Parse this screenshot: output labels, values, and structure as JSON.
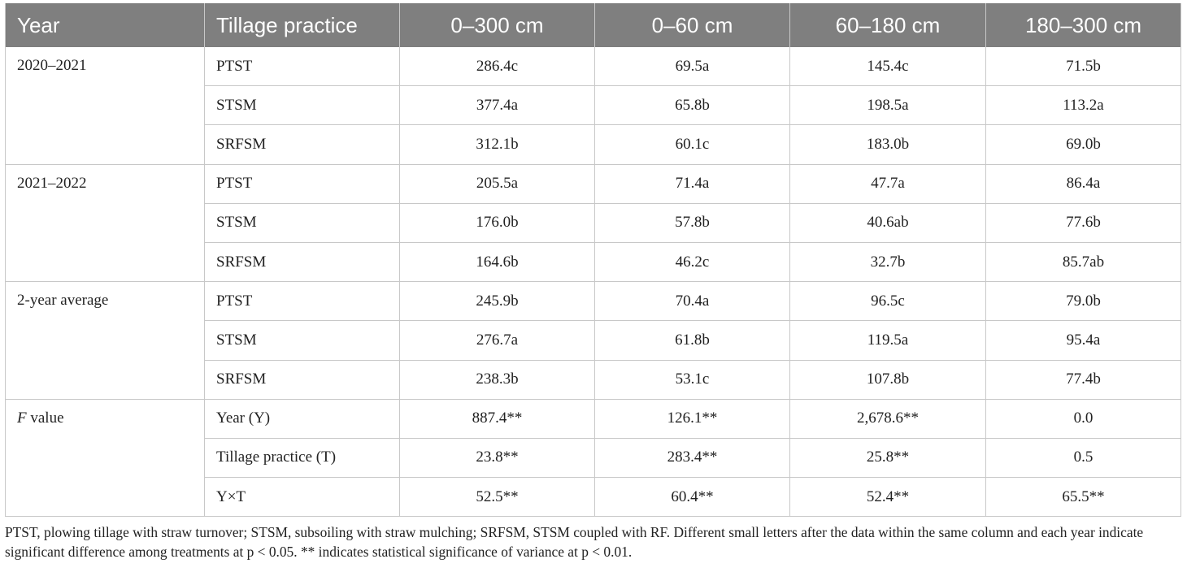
{
  "headers": [
    "Year",
    "Tillage practice",
    "0–300 cm",
    "0–60 cm",
    "60–180 cm",
    "180–300 cm"
  ],
  "groups": [
    {
      "year": "2020–2021",
      "rows": [
        {
          "tillage": "PTST",
          "v": [
            "286.4c",
            "69.5a",
            "145.4c",
            "71.5b"
          ]
        },
        {
          "tillage": "STSM",
          "v": [
            "377.4a",
            "65.8b",
            "198.5a",
            "113.2a"
          ]
        },
        {
          "tillage": "SRFSM",
          "v": [
            "312.1b",
            "60.1c",
            "183.0b",
            "69.0b"
          ]
        }
      ]
    },
    {
      "year": "2021–2022",
      "rows": [
        {
          "tillage": "PTST",
          "v": [
            "205.5a",
            "71.4a",
            "47.7a",
            "86.4a"
          ]
        },
        {
          "tillage": "STSM",
          "v": [
            "176.0b",
            "57.8b",
            "40.6ab",
            "77.6b"
          ]
        },
        {
          "tillage": "SRFSM",
          "v": [
            "164.6b",
            "46.2c",
            "32.7b",
            "85.7ab"
          ]
        }
      ]
    },
    {
      "year": "2-year average",
      "rows": [
        {
          "tillage": "PTST",
          "v": [
            "245.9b",
            "70.4a",
            "96.5c",
            "79.0b"
          ]
        },
        {
          "tillage": "STSM",
          "v": [
            "276.7a",
            "61.8b",
            "119.5a",
            "95.4a"
          ]
        },
        {
          "tillage": "SRFSM",
          "v": [
            "238.3b",
            "53.1c",
            "107.8b",
            "77.4b"
          ]
        }
      ]
    },
    {
      "year_italic": "F",
      "year_rest": " value",
      "rows": [
        {
          "tillage": "Year (Y)",
          "v": [
            "887.4**",
            "126.1**",
            "2,678.6**",
            "0.0"
          ]
        },
        {
          "tillage": "Tillage practice (T)",
          "v": [
            "23.8**",
            "283.4**",
            "25.8**",
            "0.5"
          ]
        },
        {
          "tillage": "Y×T",
          "v": [
            "52.5**",
            "60.4**",
            "52.4**",
            "65.5**"
          ]
        }
      ]
    }
  ],
  "footnote": "PTST, plowing tillage with straw turnover; STSM, subsoiling with straw mulching; SRFSM, STSM coupled with RF. Different small letters after the data within the same column and each year indicate significant difference among treatments at p < 0.05. ** indicates statistical significance of variance at p < 0.01."
}
